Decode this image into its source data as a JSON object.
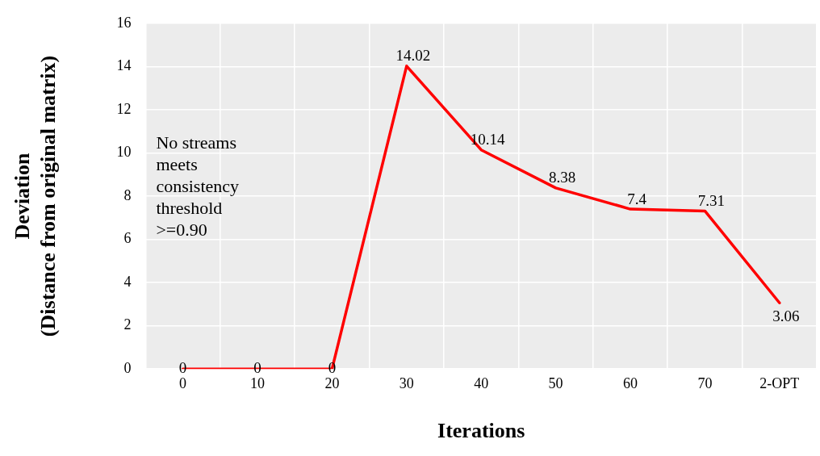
{
  "chart_data": {
    "type": "line",
    "xlabel": "Iterations",
    "ylabel": "Deviation\n(Distance from original matrix)",
    "categories": [
      "0",
      "10",
      "20",
      "30",
      "40",
      "50",
      "60",
      "70",
      "2-OPT"
    ],
    "series": [
      {
        "color": "#ff0000",
        "values": [
          0,
          0,
          0,
          14.02,
          10.14,
          8.38,
          7.4,
          7.31,
          3.06
        ]
      }
    ],
    "ylim": [
      0,
      16
    ],
    "yticks": [
      0,
      2,
      4,
      6,
      8,
      10,
      12,
      14,
      16
    ],
    "grid": true,
    "legend": false,
    "marker": "none",
    "line_style": "solid",
    "data_labels": true,
    "annotations": [
      "No streams meets consistency threshold >=0.90"
    ]
  }
}
